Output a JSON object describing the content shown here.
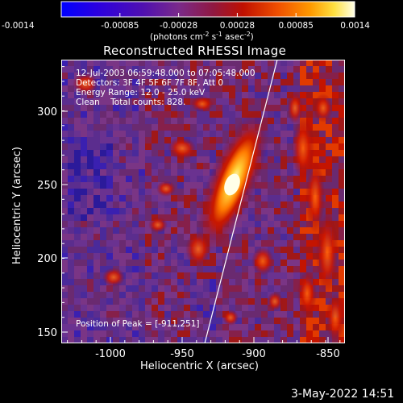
{
  "colorbar": {
    "tick_labels": [
      "-0.0014",
      "-0.00085",
      "-0.00028",
      "0.00028",
      "0.00085",
      "0.0014"
    ],
    "units": {
      "prefix": "(photons cm",
      "exp1": "-2",
      "mid1": " s",
      "exp2": "-1",
      "mid2": " asec",
      "exp3": "-2",
      "suffix": ")"
    },
    "colors": [
      "#0000ff",
      "#3a00c8",
      "#5a1a9a",
      "#78308a",
      "#8a1f3a",
      "#b01010",
      "#e83a00",
      "#ff8c00",
      "#ffd000",
      "#ffffd8"
    ]
  },
  "title": "Reconstructed RHESSI Image",
  "info": {
    "time_range": "12-Jul-2003 06:59:48.000 to 07:05:48.000",
    "detectors": "Detectors: 3F 4F 5F 6F 7F 8F, Att 0",
    "energy": "Energy Range: 12.0 - 25.0 keV",
    "clean": "Clean    Total counts: 828."
  },
  "peak": "Position of Peak = [-911,251]",
  "x_axis": {
    "label": "Heliocentric X (arcsec)",
    "ticks": [
      "-1000",
      "-950",
      "-900",
      "-850"
    ]
  },
  "y_axis": {
    "label": "Heliocentric Y (arcsec)",
    "ticks": [
      "150",
      "200",
      "250",
      "300"
    ]
  },
  "date_stamp": "3-May-2022 14:51"
}
